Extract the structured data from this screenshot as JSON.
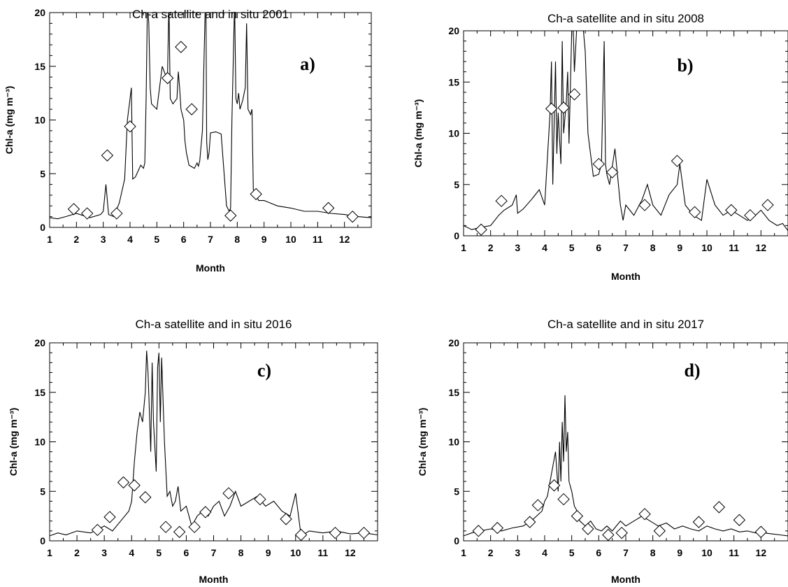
{
  "chart_data": [
    {
      "type": "line",
      "panel": "a)",
      "title": "Ch-a satellite and in situ   2001",
      "xlabel": "Month",
      "ylabel": "Chl-a (mg m⁻³)",
      "xlim": [
        1,
        13
      ],
      "ylim": [
        0,
        20
      ],
      "xticks": [
        "1",
        "2",
        "3",
        "4",
        "5",
        "6",
        "7",
        "8",
        "9",
        "10",
        "11",
        "12"
      ],
      "yticks": [
        "0",
        "5",
        "10",
        "15",
        "20"
      ],
      "series": [
        {
          "style": "line",
          "x": [
            1.0,
            1.3,
            1.6,
            2.0,
            2.5,
            2.9,
            3.0,
            3.1,
            3.2,
            3.4,
            3.6,
            3.8,
            3.9,
            4.0,
            4.05,
            4.1,
            4.2,
            4.4,
            4.5,
            4.55,
            4.6,
            4.65,
            4.7,
            4.75,
            4.8,
            5.0,
            5.2,
            5.35,
            5.4,
            5.45,
            5.5,
            5.6,
            5.75,
            5.8,
            5.85,
            5.9,
            6.0,
            6.05,
            6.1,
            6.2,
            6.4,
            6.5,
            6.55,
            6.6,
            6.7,
            6.8,
            6.83,
            6.86,
            6.9,
            6.95,
            7.0,
            7.2,
            7.4,
            7.6,
            7.7,
            7.75,
            7.8,
            7.9,
            7.95,
            8.0,
            8.05,
            8.1,
            8.2,
            8.3,
            8.35,
            8.4,
            8.5,
            8.55,
            8.6,
            8.7,
            8.8,
            9.0,
            9.5,
            10.0,
            10.5,
            11.0,
            11.5,
            12.0,
            12.5,
            13.0
          ],
          "y": [
            0.9,
            0.8,
            1.0,
            1.3,
            0.9,
            1.2,
            1.5,
            4.0,
            1.2,
            1.0,
            2.3,
            4.5,
            10.0,
            12.0,
            13.0,
            4.5,
            4.7,
            5.8,
            5.5,
            6.0,
            12.0,
            21.0,
            19.0,
            13.0,
            11.5,
            11.0,
            15.0,
            14.0,
            14.5,
            21.0,
            12.0,
            11.5,
            12.0,
            14.5,
            13.0,
            11.0,
            10.0,
            8.0,
            7.0,
            5.8,
            5.5,
            6.0,
            5.7,
            6.2,
            9.0,
            20.0,
            21.0,
            8.0,
            6.3,
            7.0,
            8.8,
            8.9,
            8.7,
            2.0,
            1.5,
            1.8,
            10.0,
            21.0,
            12.0,
            11.5,
            12.5,
            11.0,
            11.8,
            13.0,
            19.0,
            11.0,
            10.5,
            11.0,
            3.5,
            3.0,
            2.5,
            2.5,
            2.0,
            1.8,
            1.5,
            1.5,
            1.3,
            1.2,
            1.0,
            0.9
          ]
        },
        {
          "style": "diamond",
          "x": [
            1.9,
            2.4,
            3.15,
            3.5,
            4.0,
            5.4,
            5.9,
            6.3,
            7.75,
            8.7,
            11.4,
            12.3
          ],
          "y": [
            1.7,
            1.3,
            6.7,
            1.3,
            9.4,
            13.9,
            16.8,
            11.0,
            1.1,
            3.1,
            1.8,
            1.0
          ]
        }
      ]
    },
    {
      "type": "line",
      "panel": "b)",
      "title": "Ch-a satellite and in situ   2008",
      "xlabel": "Month",
      "ylabel": "Chl-a (mg m⁻³)",
      "xlim": [
        1,
        13
      ],
      "ylim": [
        0,
        20
      ],
      "xticks": [
        "1",
        "2",
        "3",
        "4",
        "5",
        "6",
        "7",
        "8",
        "9",
        "10",
        "11",
        "12"
      ],
      "yticks": [
        "0",
        "5",
        "10",
        "15",
        "20"
      ],
      "series": [
        {
          "style": "line",
          "x": [
            1.0,
            1.3,
            1.6,
            2.0,
            2.3,
            2.5,
            2.8,
            2.95,
            3.0,
            3.2,
            3.5,
            3.8,
            4.0,
            4.2,
            4.25,
            4.3,
            4.4,
            4.45,
            4.5,
            4.6,
            4.65,
            4.7,
            4.8,
            4.85,
            4.9,
            5.0,
            5.05,
            5.1,
            5.2,
            5.3,
            5.4,
            5.5,
            5.6,
            5.8,
            6.0,
            6.1,
            6.2,
            6.25,
            6.3,
            6.4,
            6.6,
            6.8,
            6.9,
            7.0,
            7.3,
            7.6,
            7.8,
            8.0,
            8.3,
            8.6,
            8.9,
            9.0,
            9.2,
            9.5,
            9.8,
            10.0,
            10.3,
            10.6,
            10.9,
            11.2,
            11.5,
            11.8,
            12.0,
            12.3,
            12.6,
            12.8,
            13.0
          ],
          "y": [
            1.0,
            0.6,
            0.8,
            1.0,
            2.0,
            2.5,
            3.0,
            4.0,
            2.2,
            2.6,
            3.5,
            4.5,
            3.0,
            12.0,
            17.0,
            5.0,
            17.0,
            8.0,
            12.0,
            7.0,
            19.0,
            10.0,
            13.0,
            16.0,
            9.0,
            20.0,
            21.0,
            16.0,
            21.0,
            21.0,
            21.0,
            18.0,
            10.0,
            5.8,
            6.0,
            7.0,
            19.0,
            7.0,
            6.0,
            5.0,
            8.5,
            3.0,
            1.5,
            3.0,
            2.0,
            3.5,
            5.0,
            3.0,
            2.0,
            4.0,
            5.0,
            7.0,
            3.0,
            2.0,
            1.5,
            5.5,
            3.0,
            2.0,
            2.5,
            2.0,
            1.5,
            2.0,
            2.5,
            1.5,
            1.0,
            1.2,
            0.5
          ]
        },
        {
          "style": "diamond",
          "x": [
            1.65,
            2.4,
            4.25,
            4.7,
            5.1,
            6.0,
            6.5,
            7.7,
            8.9,
            9.55,
            10.9,
            11.6,
            12.25
          ],
          "y": [
            0.6,
            3.4,
            12.4,
            12.5,
            13.8,
            7.0,
            6.2,
            3.0,
            7.3,
            2.3,
            2.5,
            2.0,
            3.0
          ]
        }
      ]
    },
    {
      "type": "line",
      "panel": "c)",
      "title": "Ch-a satellite and in situ   2016",
      "xlabel": "Month",
      "ylabel": "Chl-a (mg m⁻³)",
      "xlim": [
        1,
        13
      ],
      "ylim": [
        0,
        20
      ],
      "xticks": [
        "1",
        "2",
        "3",
        "4",
        "5",
        "6",
        "7",
        "8",
        "9",
        "10",
        "11",
        "12"
      ],
      "yticks": [
        "0",
        "5",
        "10",
        "15",
        "20"
      ],
      "series": [
        {
          "style": "line",
          "x": [
            1.0,
            1.3,
            1.6,
            2.0,
            2.5,
            2.8,
            3.0,
            3.3,
            3.6,
            3.9,
            4.0,
            4.1,
            4.2,
            4.3,
            4.4,
            4.5,
            4.55,
            4.6,
            4.65,
            4.7,
            4.75,
            4.8,
            4.9,
            4.95,
            5.0,
            5.05,
            5.1,
            5.2,
            5.3,
            5.4,
            5.5,
            5.6,
            5.7,
            5.8,
            6.0,
            6.2,
            6.4,
            6.6,
            6.8,
            7.0,
            7.2,
            7.4,
            7.6,
            7.8,
            8.0,
            8.3,
            8.6,
            8.9,
            9.2,
            9.5,
            9.8,
            10.0,
            10.2,
            10.5,
            11.0,
            11.5,
            12.0,
            12.5,
            13.0
          ],
          "y": [
            0.5,
            0.8,
            0.6,
            1.0,
            0.8,
            1.2,
            1.5,
            1.0,
            2.0,
            3.0,
            4.0,
            8.0,
            11.0,
            13.0,
            12.0,
            15.0,
            19.2,
            17.0,
            13.0,
            9.0,
            18.0,
            12.0,
            7.0,
            17.5,
            19.0,
            12.0,
            18.5,
            10.0,
            4.5,
            5.0,
            3.5,
            4.0,
            5.5,
            3.0,
            3.5,
            1.5,
            2.5,
            3.0,
            2.5,
            3.5,
            4.0,
            2.5,
            3.5,
            5.0,
            3.5,
            4.0,
            4.5,
            3.5,
            4.0,
            3.0,
            2.5,
            4.8,
            0.5,
            1.0,
            0.8,
            1.0,
            0.7,
            0.8,
            0.6
          ]
        },
        {
          "style": "diamond",
          "x": [
            2.75,
            3.2,
            3.7,
            4.1,
            4.5,
            5.25,
            5.75,
            6.3,
            6.7,
            7.55,
            8.7,
            9.65,
            10.2,
            11.45,
            12.5
          ],
          "y": [
            1.1,
            2.4,
            5.9,
            5.6,
            4.4,
            1.4,
            0.9,
            1.4,
            2.9,
            4.8,
            4.2,
            2.2,
            0.6,
            0.8,
            0.8
          ]
        }
      ]
    },
    {
      "type": "line",
      "panel": "d)",
      "title": "Ch-a satellite and in situ   2017",
      "xlabel": "Month",
      "ylabel": "Chl-a (mg m⁻³)",
      "xlim": [
        1,
        13
      ],
      "ylim": [
        0,
        20
      ],
      "xticks": [
        "1",
        "2",
        "3",
        "4",
        "5",
        "6",
        "7",
        "8",
        "9",
        "10",
        "11",
        "12"
      ],
      "yticks": [
        "0",
        "5",
        "10",
        "15",
        "20"
      ],
      "series": [
        {
          "style": "line",
          "x": [
            1.0,
            1.3,
            1.6,
            2.0,
            2.4,
            2.8,
            3.2,
            3.5,
            3.7,
            3.9,
            4.0,
            4.1,
            4.2,
            4.3,
            4.4,
            4.5,
            4.55,
            4.6,
            4.65,
            4.7,
            4.75,
            4.8,
            4.85,
            4.9,
            5.0,
            5.1,
            5.2,
            5.3,
            5.5,
            5.7,
            5.9,
            6.1,
            6.3,
            6.5,
            6.8,
            7.0,
            7.3,
            7.6,
            7.9,
            8.2,
            8.5,
            8.8,
            9.1,
            9.4,
            9.7,
            10.0,
            10.3,
            10.6,
            10.9,
            11.2,
            11.5,
            11.8,
            12.1,
            12.4,
            12.7,
            13.0
          ],
          "y": [
            0.5,
            0.8,
            1.0,
            1.2,
            1.0,
            1.3,
            1.5,
            2.0,
            2.5,
            3.0,
            4.0,
            4.5,
            6.0,
            7.5,
            9.0,
            5.0,
            10.0,
            6.0,
            12.0,
            8.0,
            14.7,
            9.0,
            11.0,
            6.0,
            5.0,
            3.5,
            3.0,
            2.0,
            1.5,
            2.0,
            1.2,
            1.0,
            1.5,
            1.0,
            2.0,
            1.5,
            2.0,
            2.5,
            2.0,
            1.5,
            1.8,
            1.2,
            1.5,
            1.2,
            1.0,
            1.5,
            1.2,
            1.0,
            1.2,
            0.9,
            1.0,
            0.8,
            0.8,
            0.7,
            0.6,
            0.5
          ]
        },
        {
          "style": "diamond",
          "x": [
            1.55,
            2.25,
            3.45,
            3.75,
            4.35,
            4.7,
            5.2,
            5.6,
            6.35,
            6.85,
            7.7,
            8.25,
            9.7,
            10.45,
            11.2,
            12.0
          ],
          "y": [
            1.0,
            1.3,
            1.9,
            3.6,
            5.6,
            4.2,
            2.5,
            1.2,
            0.6,
            0.8,
            2.7,
            1.0,
            1.9,
            3.4,
            2.1,
            0.9
          ]
        }
      ]
    }
  ]
}
